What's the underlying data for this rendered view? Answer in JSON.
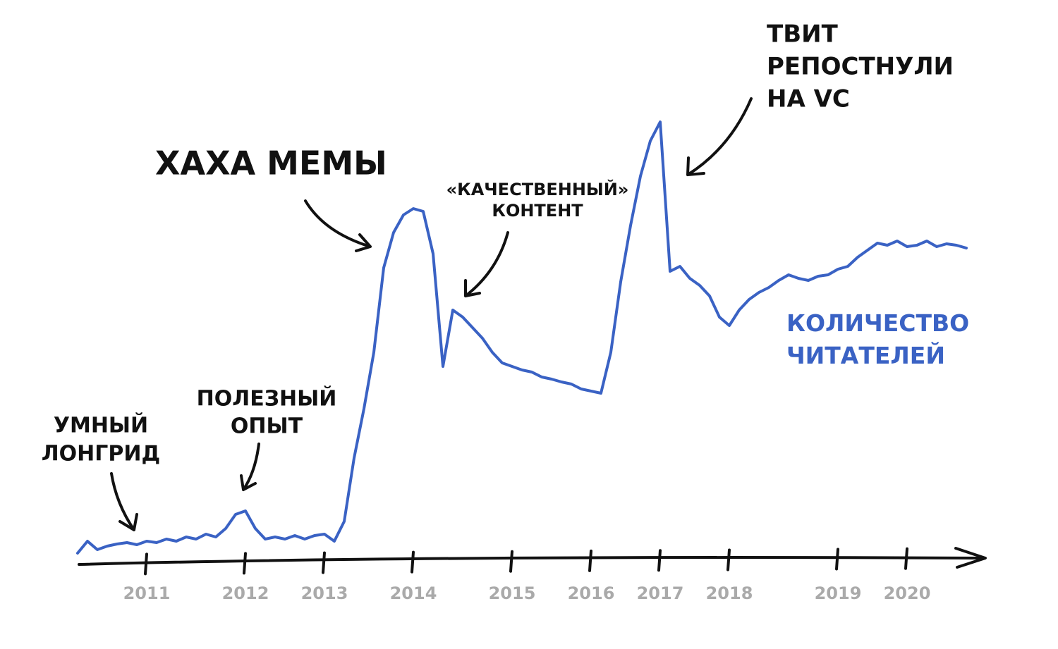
{
  "chart_data": {
    "type": "line",
    "categories": [
      null,
      null,
      null,
      null,
      null,
      null,
      null,
      "2011",
      null,
      null,
      null,
      null,
      null,
      null,
      null,
      null,
      null,
      "2012",
      null,
      null,
      null,
      null,
      null,
      null,
      null,
      "2013",
      null,
      null,
      null,
      null,
      null,
      null,
      null,
      null,
      "2014",
      null,
      null,
      null,
      null,
      null,
      null,
      null,
      null,
      null,
      "2015",
      null,
      null,
      null,
      null,
      null,
      null,
      null,
      "2016",
      null,
      null,
      null,
      null,
      null,
      null,
      "2017",
      null,
      null,
      null,
      null,
      null,
      null,
      "2018",
      null,
      null,
      null,
      null,
      null,
      null,
      null,
      null,
      null,
      null,
      "2019",
      null,
      null,
      null,
      null,
      null,
      null,
      "2020",
      null,
      null,
      null,
      null,
      null,
      null
    ],
    "series": [
      {
        "name": "КОЛИЧЕСТВО ЧИТАТЕЛЕЙ",
        "color": "#3a62c4",
        "values": [
          5,
          22,
          10,
          15,
          18,
          20,
          17,
          22,
          20,
          25,
          22,
          28,
          25,
          32,
          28,
          40,
          60,
          65,
          40,
          25,
          28,
          25,
          30,
          25,
          30,
          32,
          22,
          50,
          140,
          210,
          290,
          410,
          460,
          485,
          494,
          490,
          430,
          270,
          350,
          340,
          325,
          310,
          290,
          275,
          270,
          265,
          262,
          255,
          252,
          248,
          245,
          238,
          235,
          232,
          290,
          390,
          470,
          540,
          590,
          617,
          405,
          412,
          395,
          385,
          370,
          340,
          328,
          350,
          365,
          375,
          382,
          392,
          400,
          395,
          392,
          398,
          400,
          408,
          412,
          425,
          435,
          445,
          442,
          448,
          440,
          442,
          448,
          440,
          444,
          442,
          438
        ]
      }
    ],
    "ylim": [
      0,
      620
    ],
    "annotations": [
      {
        "lines": [
          "УМНЫЙ",
          "ЛОНГРИД"
        ]
      },
      {
        "lines": [
          "ПОЛЕЗНЫЙ",
          "ОПЫТ"
        ]
      },
      {
        "lines": [
          "ХАХА МЕМЫ"
        ]
      },
      {
        "lines": [
          "«КАЧЕСТВЕННЫЙ»",
          "КОНТЕНТ"
        ]
      },
      {
        "lines": [
          "ТВИТ",
          "РЕПОСТНУЛИ",
          "НА VC"
        ]
      }
    ]
  }
}
